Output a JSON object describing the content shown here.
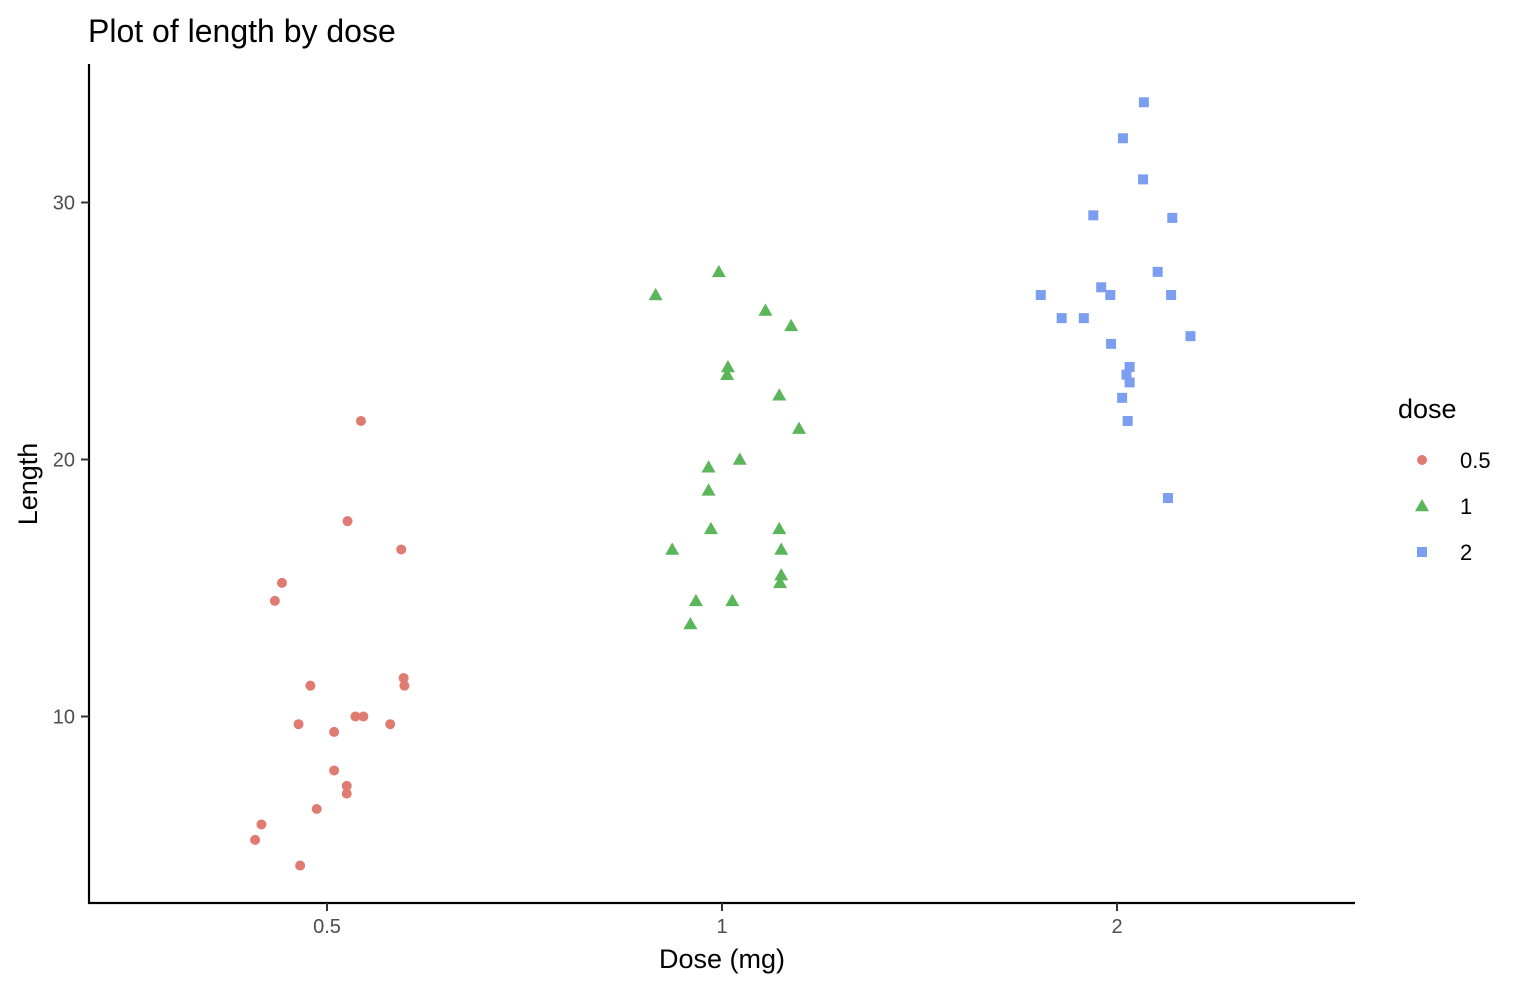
{
  "chart_data": {
    "type": "scatter",
    "title": "Plot of length  by dose",
    "xlabel": "Dose (mg)",
    "ylabel": "Length",
    "categories": [
      "0.5",
      "1",
      "2"
    ],
    "y_ticks": [
      10,
      20,
      30
    ],
    "ylim": [
      2.8,
      35.4
    ],
    "grid": false,
    "legend": {
      "title": "dose",
      "placement": "right",
      "entries": [
        "0.5",
        "1",
        "2"
      ]
    },
    "series": [
      {
        "name": "0.5",
        "color": "#E07B72",
        "shape": "circle",
        "points": [
          {
            "x": 0.409,
            "y": 5.2
          },
          {
            "x": 0.417,
            "y": 5.8
          },
          {
            "x": 0.434,
            "y": 14.5
          },
          {
            "x": 0.443,
            "y": 15.2
          },
          {
            "x": 0.464,
            "y": 9.7
          },
          {
            "x": 0.466,
            "y": 4.2
          },
          {
            "x": 0.479,
            "y": 11.2
          },
          {
            "x": 0.487,
            "y": 6.4
          },
          {
            "x": 0.509,
            "y": 7.9
          },
          {
            "x": 0.509,
            "y": 9.4
          },
          {
            "x": 0.525,
            "y": 7.0
          },
          {
            "x": 0.525,
            "y": 7.3
          },
          {
            "x": 0.526,
            "y": 17.6
          },
          {
            "x": 0.536,
            "y": 10.0
          },
          {
            "x": 0.543,
            "y": 21.5
          },
          {
            "x": 0.546,
            "y": 10.0
          },
          {
            "x": 0.58,
            "y": 9.7
          },
          {
            "x": 0.594,
            "y": 16.5
          },
          {
            "x": 0.597,
            "y": 11.5
          },
          {
            "x": 0.598,
            "y": 11.2
          }
        ]
      },
      {
        "name": "1",
        "color": "#5BB55B",
        "shape": "triangle",
        "points": [
          {
            "x": 0.916,
            "y": 26.4
          },
          {
            "x": 0.937,
            "y": 16.5
          },
          {
            "x": 0.96,
            "y": 13.6
          },
          {
            "x": 0.967,
            "y": 14.5
          },
          {
            "x": 0.983,
            "y": 19.7
          },
          {
            "x": 0.983,
            "y": 18.8
          },
          {
            "x": 0.986,
            "y": 17.3
          },
          {
            "x": 0.996,
            "y": 27.3
          },
          {
            "x": 1.013,
            "y": 23.3
          },
          {
            "x": 1.015,
            "y": 23.6
          },
          {
            "x": 1.026,
            "y": 14.5
          },
          {
            "x": 1.045,
            "y": 20.0
          },
          {
            "x": 1.11,
            "y": 25.8
          },
          {
            "x": 1.145,
            "y": 22.5
          },
          {
            "x": 1.145,
            "y": 17.3
          },
          {
            "x": 1.147,
            "y": 15.2
          },
          {
            "x": 1.15,
            "y": 16.5
          },
          {
            "x": 1.15,
            "y": 15.5
          },
          {
            "x": 1.175,
            "y": 25.2
          },
          {
            "x": 1.195,
            "y": 21.2
          }
        ]
      },
      {
        "name": "2",
        "color": "#7B9EF0",
        "shape": "square",
        "points": [
          {
            "x": 1.807,
            "y": 26.4
          },
          {
            "x": 1.86,
            "y": 25.5
          },
          {
            "x": 1.916,
            "y": 25.5
          },
          {
            "x": 1.94,
            "y": 29.5
          },
          {
            "x": 1.96,
            "y": 26.7
          },
          {
            "x": 1.983,
            "y": 26.4
          },
          {
            "x": 1.985,
            "y": 24.5
          },
          {
            "x": 2.013,
            "y": 22.4
          },
          {
            "x": 2.015,
            "y": 32.5
          },
          {
            "x": 2.024,
            "y": 23.3
          },
          {
            "x": 2.027,
            "y": 21.5
          },
          {
            "x": 2.032,
            "y": 23.6
          },
          {
            "x": 2.032,
            "y": 23.0
          },
          {
            "x": 2.066,
            "y": 30.9
          },
          {
            "x": 2.068,
            "y": 33.9
          },
          {
            "x": 2.103,
            "y": 27.3
          },
          {
            "x": 2.129,
            "y": 18.5
          },
          {
            "x": 2.137,
            "y": 26.4
          },
          {
            "x": 2.14,
            "y": 29.4
          },
          {
            "x": 2.186,
            "y": 24.8
          }
        ]
      }
    ]
  }
}
